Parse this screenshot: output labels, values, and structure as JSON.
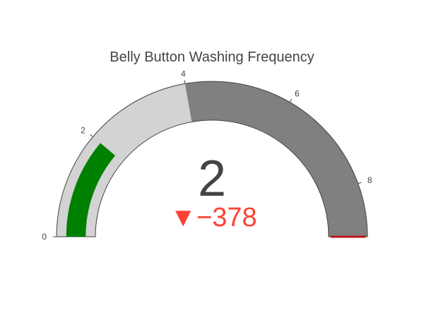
{
  "chart_data": {
    "type": "gauge",
    "title": "Belly Button Washing Frequency",
    "value": 2,
    "value_label": "2",
    "delta": {
      "value": -378,
      "label": "−378",
      "symbol": "▼",
      "color": "#ff4136"
    },
    "axis": {
      "range": [
        0,
        9
      ],
      "ticks": [
        0,
        2,
        4,
        6,
        8
      ],
      "tick_labels": [
        "0",
        "2",
        "4",
        "6",
        "8"
      ]
    },
    "steps": [
      {
        "range": [
          0,
          4
        ],
        "color": "#d3d3d3"
      },
      {
        "range": [
          4,
          9
        ],
        "color": "#808080"
      }
    ],
    "bar": {
      "color": "#008000"
    },
    "threshold": {
      "value": 9,
      "color": "#c0141a"
    },
    "border_color": "#444444",
    "background": "#ffffff"
  }
}
